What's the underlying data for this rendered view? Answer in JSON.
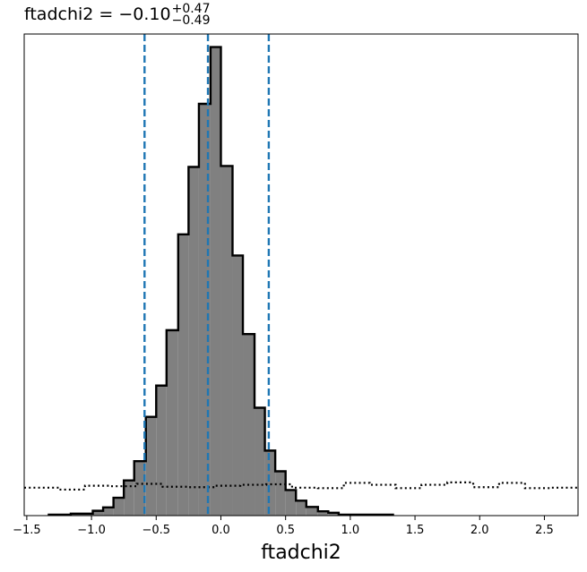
{
  "chart_data": {
    "type": "histogram",
    "title": {
      "param": "ftadchi2",
      "value": "−0.10",
      "plus": "+0.47",
      "minus": "−0.49"
    },
    "xlabel": "ftadchi2",
    "xlim": [
      -1.52,
      2.76
    ],
    "x_ticks": [
      -1.5,
      -1.0,
      -0.5,
      0.0,
      0.5,
      1.0,
      1.5,
      2.0,
      2.5
    ],
    "x_tick_labels": [
      "−1.5",
      "−1.0",
      "−0.5",
      "0.0",
      "0.5",
      "1.0",
      "1.5",
      "2.0",
      "2.5"
    ],
    "yticks_visible": false,
    "ylim": [
      0,
      1.0
    ],
    "series": [
      {
        "kind": "posterior",
        "style": "filled-step",
        "fill": "#808080",
        "edge": "#000000",
        "bins": [
          [
            -1.33,
            -1.16,
            0.002
          ],
          [
            -1.16,
            -0.99,
            0.004
          ],
          [
            -0.99,
            -0.91,
            0.01
          ],
          [
            -0.91,
            -0.83,
            0.017
          ],
          [
            -0.83,
            -0.75,
            0.037
          ],
          [
            -0.75,
            -0.67,
            0.073
          ],
          [
            -0.67,
            -0.58,
            0.113
          ],
          [
            -0.58,
            -0.5,
            0.205
          ],
          [
            -0.5,
            -0.42,
            0.27
          ],
          [
            -0.42,
            -0.33,
            0.385
          ],
          [
            -0.33,
            -0.25,
            0.584
          ],
          [
            -0.25,
            -0.17,
            0.724
          ],
          [
            -0.17,
            -0.08,
            0.855
          ],
          [
            -0.08,
            0.0,
            0.973
          ],
          [
            0.0,
            0.09,
            0.726
          ],
          [
            0.09,
            0.17,
            0.54
          ],
          [
            0.17,
            0.26,
            0.377
          ],
          [
            0.26,
            0.34,
            0.224
          ],
          [
            0.34,
            0.42,
            0.135
          ],
          [
            0.42,
            0.5,
            0.092
          ],
          [
            0.5,
            0.58,
            0.053
          ],
          [
            0.58,
            0.66,
            0.031
          ],
          [
            0.66,
            0.75,
            0.018
          ],
          [
            0.75,
            0.83,
            0.009
          ],
          [
            0.83,
            0.91,
            0.006
          ],
          [
            0.91,
            1.33,
            0.002
          ]
        ]
      },
      {
        "kind": "prior",
        "style": "dotted-step",
        "color": "#000000",
        "x": [
          -1.52,
          -1.25,
          -1.05,
          -0.85,
          -0.65,
          -0.45,
          -0.25,
          -0.05,
          0.15,
          0.35,
          0.55,
          0.75,
          0.95,
          1.15,
          1.35,
          1.55,
          1.75,
          1.95,
          2.15,
          2.35,
          2.55,
          2.76
        ],
        "y": [
          0.058,
          0.054,
          0.062,
          0.061,
          0.066,
          0.06,
          0.059,
          0.062,
          0.064,
          0.065,
          0.058,
          0.057,
          0.068,
          0.064,
          0.057,
          0.064,
          0.069,
          0.059,
          0.068,
          0.057,
          0.058,
          0.058
        ]
      }
    ],
    "quantile_lines": {
      "style": "dashed",
      "color": "#1f77b4",
      "x": [
        -0.59,
        -0.1,
        0.37
      ]
    }
  }
}
